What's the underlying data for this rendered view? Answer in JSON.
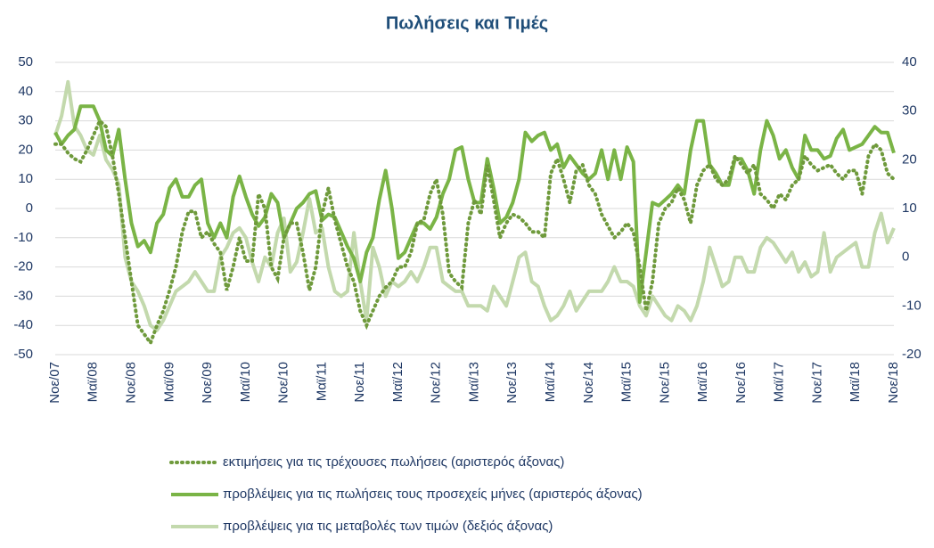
{
  "chart_data": {
    "type": "line",
    "title": "Πωλήσεις και Τιμές",
    "categories": [
      "Νοε/07",
      null,
      null,
      null,
      null,
      null,
      "Μαϊ/08",
      null,
      null,
      null,
      null,
      null,
      "Νοε/08",
      null,
      null,
      null,
      null,
      null,
      "Μαϊ/09",
      null,
      null,
      null,
      null,
      null,
      "Νοε/09",
      null,
      null,
      null,
      null,
      null,
      "Μαϊ/10",
      null,
      null,
      null,
      null,
      null,
      "Νοε/10",
      null,
      null,
      null,
      null,
      null,
      "Μαϊ/11",
      null,
      null,
      null,
      null,
      null,
      "Νοε/11",
      null,
      null,
      null,
      null,
      null,
      "Μαϊ/12",
      null,
      null,
      null,
      null,
      null,
      "Νοε/12",
      null,
      null,
      null,
      null,
      null,
      "Μαϊ/13",
      null,
      null,
      null,
      null,
      null,
      "Νοε/13",
      null,
      null,
      null,
      null,
      null,
      "Μαϊ/14",
      null,
      null,
      null,
      null,
      null,
      "Νοε/14",
      null,
      null,
      null,
      null,
      null,
      "Μαϊ/15",
      null,
      null,
      null,
      null,
      null,
      "Νοε/15",
      null,
      null,
      null,
      null,
      null,
      "Μαϊ/16",
      null,
      null,
      null,
      null,
      null,
      "Νοε/16",
      null,
      null,
      null,
      null,
      null,
      "Μαϊ/17",
      null,
      null,
      null,
      null,
      null,
      "Νοε/17",
      null,
      null,
      null,
      null,
      null,
      "Μαϊ/18",
      null,
      null,
      null,
      null,
      null,
      "Νοε/18"
    ],
    "series": [
      {
        "name": "εκτιμήσεις για τις τρέχουσες πωλήσεις (αριστερός άξονας)",
        "color": "#6f9a3c",
        "style": "dotted",
        "values": [
          22,
          22,
          19,
          17,
          16,
          20,
          25,
          30,
          28,
          18,
          5,
          -10,
          -25,
          -40,
          -43,
          -46,
          -40,
          -35,
          -28,
          -20,
          -8,
          -1,
          -1,
          -10,
          -8,
          -12,
          -15,
          -28,
          -20,
          -10,
          -18,
          -18,
          5,
          0,
          -20,
          -24,
          -10,
          -5,
          -5,
          -15,
          -28,
          -20,
          -2,
          7,
          -4,
          -12,
          -20,
          -25,
          -35,
          -40,
          -35,
          -30,
          -27,
          -25,
          -20,
          -20,
          -15,
          -5,
          -4,
          5,
          10,
          -2,
          -22,
          -25,
          -27,
          -5,
          3,
          -2,
          15,
          3,
          -10,
          -5,
          -2,
          -3,
          -5,
          -8,
          -8,
          -10,
          12,
          17,
          10,
          2,
          13,
          15,
          8,
          5,
          -2,
          -6,
          -10,
          -8,
          -5,
          -8,
          -20,
          -35,
          -25,
          -5,
          0,
          2,
          7,
          3,
          -5,
          8,
          13,
          15,
          10,
          8,
          10,
          18,
          15,
          12,
          15,
          5,
          3,
          0,
          5,
          3,
          8,
          10,
          18,
          15,
          13,
          14,
          15,
          12,
          10,
          13,
          13,
          5,
          18,
          22,
          20,
          12,
          10
        ]
      },
      {
        "name": "προβλέψεις για τις πωλήσεις τους προσεχείς μήνες (αριστερός άξονας)",
        "color": "#7ab446",
        "style": "solid",
        "values": [
          26,
          22,
          25,
          27,
          35,
          35,
          35,
          30,
          20,
          18,
          27,
          10,
          -5,
          -13,
          -11,
          -15,
          -5,
          -2,
          7,
          10,
          4,
          4,
          8,
          10,
          -5,
          -10,
          -5,
          -10,
          4,
          11,
          4,
          -2,
          -6,
          -3,
          5,
          2,
          -10,
          -5,
          0,
          2,
          5,
          6,
          -4,
          -2,
          -3,
          -8,
          -13,
          -17,
          -25,
          -15,
          -10,
          3,
          13,
          0,
          -17,
          -15,
          -10,
          -5,
          -5,
          -7,
          -3,
          5,
          10,
          20,
          21,
          10,
          2,
          2,
          17,
          7,
          -5,
          -3,
          2,
          10,
          26,
          23,
          25,
          26,
          20,
          22,
          14,
          18,
          15,
          12,
          10,
          12,
          20,
          10,
          20,
          10,
          21,
          16,
          -32,
          -15,
          2,
          1,
          3,
          5,
          8,
          5,
          20,
          30,
          30,
          15,
          12,
          8,
          8,
          17,
          17,
          13,
          5,
          20,
          30,
          25,
          17,
          20,
          14,
          10,
          25,
          20,
          20,
          17,
          18,
          24,
          27,
          20,
          21,
          22,
          25,
          28,
          26,
          26,
          19
        ]
      },
      {
        "name": "προβλέψεις για τις μεταβολές των τιμών (δεξιός άξονας)",
        "color": "#c3d9ad",
        "style": "solid",
        "axis": "y2",
        "values": [
          25,
          29,
          36,
          27,
          25,
          22,
          21,
          25,
          20,
          18,
          15,
          0,
          -5,
          -7,
          -10,
          -14,
          -15,
          -13,
          -10,
          -7,
          -6,
          -5,
          -3,
          -5,
          -7,
          -7,
          0,
          2,
          5,
          6,
          4,
          -1,
          -5,
          0,
          -2,
          5,
          8,
          -3,
          -1,
          5,
          12,
          5,
          6,
          -2,
          -7,
          -8,
          -7,
          5,
          -5,
          -13,
          2,
          -2,
          -8,
          -5,
          -6,
          -5,
          -3,
          -5,
          -2,
          2,
          2,
          -5,
          -6,
          -7,
          -7,
          -10,
          -10,
          -10,
          -11,
          -6,
          -8,
          -10,
          -5,
          0,
          1,
          -5,
          -6,
          -10,
          -13,
          -12,
          -10,
          -7,
          -11,
          -9,
          -7,
          -7,
          -7,
          -5,
          -2,
          -5,
          -5,
          -6,
          -10,
          -12,
          -8,
          -10,
          -12,
          -13,
          -10,
          -11,
          -13,
          -10,
          -5,
          2,
          -2,
          -6,
          -5,
          0,
          0,
          -3,
          -3,
          2,
          4,
          3,
          1,
          -1,
          1,
          -3,
          -1,
          -4,
          -3,
          5,
          -3,
          0,
          1,
          2,
          3,
          -2,
          -2,
          5,
          9,
          3,
          6
        ]
      }
    ],
    "ylim": [
      -50,
      50
    ],
    "yticks": [
      -50,
      -40,
      -30,
      -20,
      -10,
      0,
      10,
      20,
      30,
      40,
      50
    ],
    "y2lim": [
      -20,
      40
    ],
    "y2ticks": [
      -20,
      -10,
      0,
      10,
      20,
      30,
      40
    ],
    "grid": true
  }
}
